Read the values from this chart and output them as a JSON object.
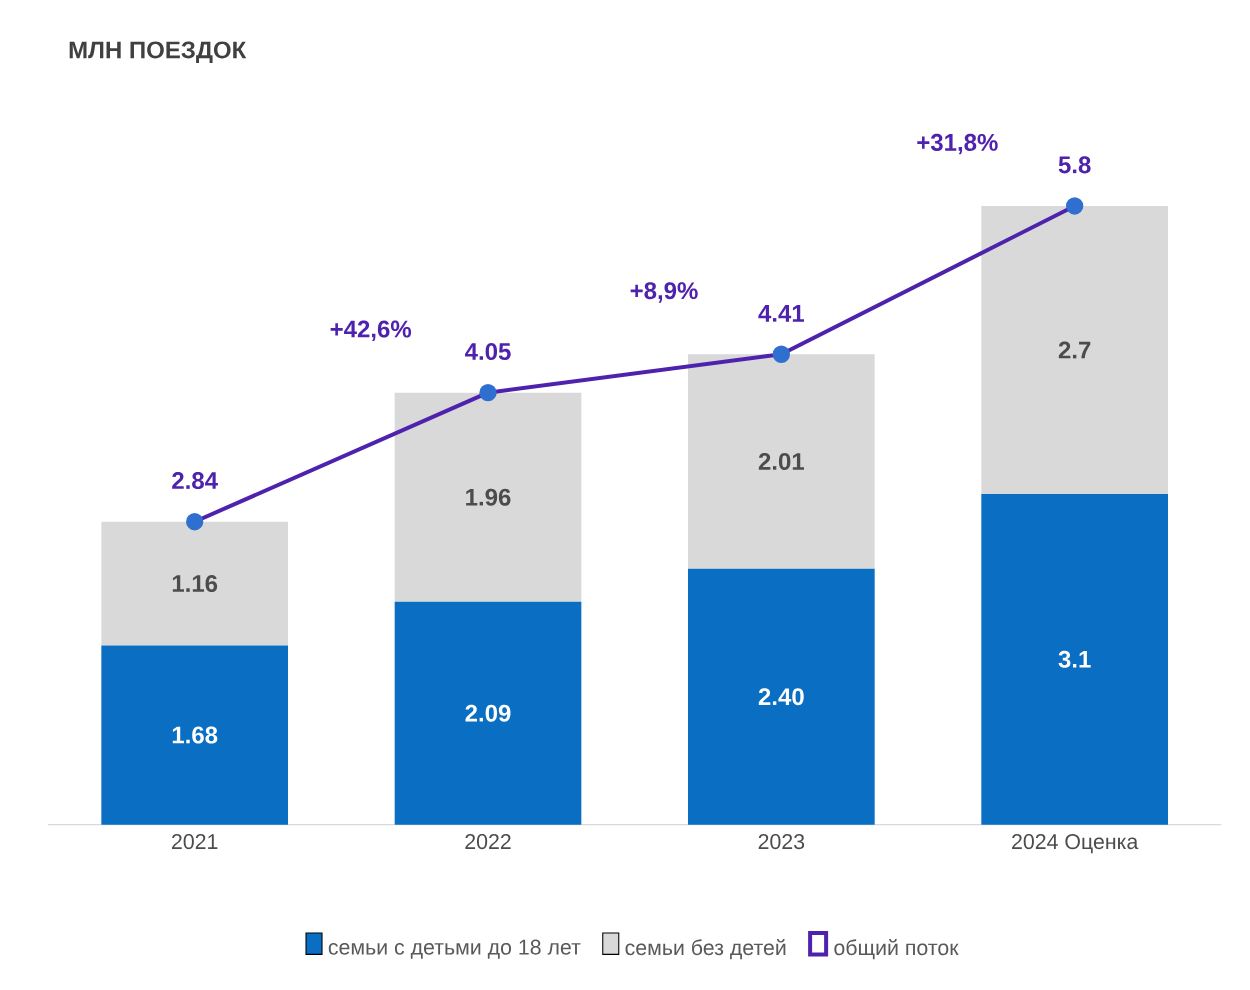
{
  "chart_data": {
    "type": "bar",
    "stacked": true,
    "title": "МЛН ПОЕЗДОК",
    "categories": [
      "2021",
      "2022",
      "2023",
      "2024 Оценка"
    ],
    "series": [
      {
        "name": "семьи с детьми до 18 лет",
        "color": "#0a6fc2",
        "values": [
          1.68,
          2.09,
          2.4,
          3.1
        ],
        "value_labels": [
          "1.68",
          "2.09",
          "2.40",
          "3.1"
        ]
      },
      {
        "name": "семьи без детей",
        "color": "#d9d9d9",
        "values": [
          1.16,
          1.96,
          2.01,
          2.7
        ],
        "value_labels": [
          "1.16",
          "1.96",
          "2.01",
          "2.7"
        ]
      },
      {
        "name": "общий поток",
        "type": "line",
        "color": "#4f22ad",
        "values": [
          2.84,
          4.05,
          4.41,
          5.8
        ],
        "value_labels": [
          "2.84",
          "4.05",
          "4.41",
          "5.8"
        ]
      }
    ],
    "annotations": [
      "+42,6%",
      "+8,9%",
      "+31,8%"
    ],
    "legend": "bottom",
    "marker": "circle"
  }
}
